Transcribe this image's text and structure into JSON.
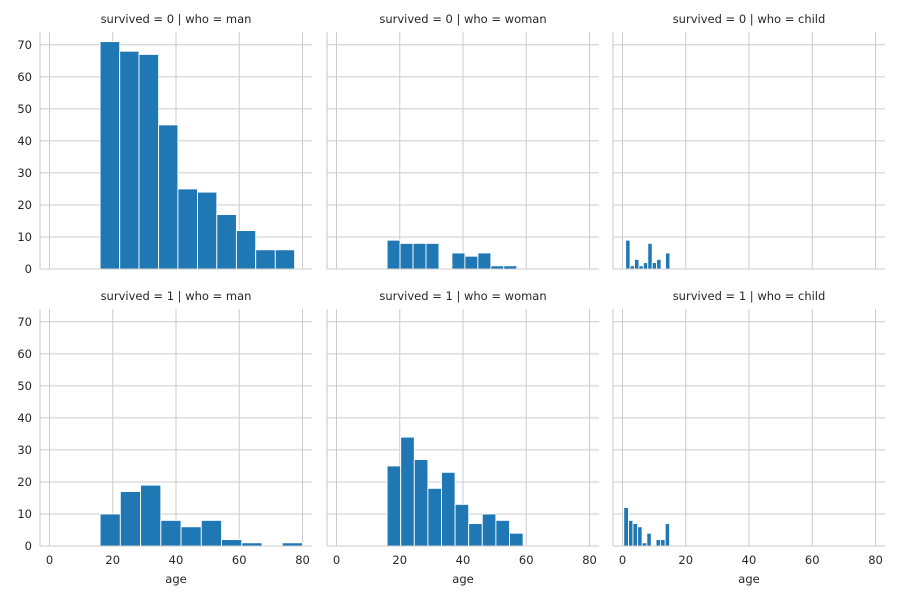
{
  "colors": {
    "bar": "#1f77b4",
    "grid": "#cccccc",
    "text": "#262626",
    "background": "#ffffff"
  },
  "chart_data": {
    "type": "bar",
    "layout": "facet-grid",
    "rows": 2,
    "cols": 3,
    "xlabel": "age",
    "xlim": [
      -3,
      83
    ],
    "xticks": [
      0,
      20,
      40,
      60,
      80
    ],
    "ylim": [
      0,
      74
    ],
    "yticks": [
      0,
      10,
      20,
      30,
      40,
      50,
      60,
      70
    ],
    "grid": true,
    "sharex": true,
    "sharey": true,
    "panels": [
      {
        "title": "survived = 0 | who = man",
        "bins": [
          {
            "x0": 16.0,
            "x1": 22.2,
            "value": 71
          },
          {
            "x0": 22.2,
            "x1": 28.3,
            "value": 68
          },
          {
            "x0": 28.3,
            "x1": 34.5,
            "value": 67
          },
          {
            "x0": 34.5,
            "x1": 40.6,
            "value": 45
          },
          {
            "x0": 40.6,
            "x1": 46.8,
            "value": 25
          },
          {
            "x0": 46.8,
            "x1": 52.9,
            "value": 24
          },
          {
            "x0": 52.9,
            "x1": 59.1,
            "value": 17
          },
          {
            "x0": 59.1,
            "x1": 65.2,
            "value": 12
          },
          {
            "x0": 65.2,
            "x1": 71.4,
            "value": 6
          },
          {
            "x0": 71.4,
            "x1": 77.5,
            "value": 6
          }
        ]
      },
      {
        "title": "survived = 0 | who = woman",
        "bins": [
          {
            "x0": 16.0,
            "x1": 20.1,
            "value": 9
          },
          {
            "x0": 20.1,
            "x1": 24.2,
            "value": 8
          },
          {
            "x0": 24.2,
            "x1": 28.3,
            "value": 8
          },
          {
            "x0": 28.3,
            "x1": 32.4,
            "value": 8
          },
          {
            "x0": 32.4,
            "x1": 36.5,
            "value": 0
          },
          {
            "x0": 36.5,
            "x1": 40.6,
            "value": 5
          },
          {
            "x0": 40.6,
            "x1": 44.7,
            "value": 4
          },
          {
            "x0": 44.7,
            "x1": 48.8,
            "value": 5
          },
          {
            "x0": 48.8,
            "x1": 52.9,
            "value": 1
          },
          {
            "x0": 52.9,
            "x1": 57.0,
            "value": 1
          }
        ]
      },
      {
        "title": "survived = 0 | who = child",
        "bins": [
          {
            "x0": 1.0,
            "x1": 2.4,
            "value": 9
          },
          {
            "x0": 2.4,
            "x1": 3.8,
            "value": 1
          },
          {
            "x0": 3.8,
            "x1": 5.2,
            "value": 3
          },
          {
            "x0": 5.2,
            "x1": 6.6,
            "value": 1
          },
          {
            "x0": 6.6,
            "x1": 8.0,
            "value": 2
          },
          {
            "x0": 8.0,
            "x1": 9.4,
            "value": 8
          },
          {
            "x0": 9.4,
            "x1": 10.8,
            "value": 2
          },
          {
            "x0": 10.8,
            "x1": 12.2,
            "value": 3
          },
          {
            "x0": 12.2,
            "x1": 13.6,
            "value": 0
          },
          {
            "x0": 13.6,
            "x1": 15.0,
            "value": 5
          }
        ]
      },
      {
        "title": "survived = 1 | who = man",
        "bins": [
          {
            "x0": 16.0,
            "x1": 22.4,
            "value": 10
          },
          {
            "x0": 22.4,
            "x1": 28.8,
            "value": 17
          },
          {
            "x0": 28.8,
            "x1": 35.2,
            "value": 19
          },
          {
            "x0": 35.2,
            "x1": 41.6,
            "value": 8
          },
          {
            "x0": 41.6,
            "x1": 48.0,
            "value": 6
          },
          {
            "x0": 48.0,
            "x1": 54.4,
            "value": 8
          },
          {
            "x0": 54.4,
            "x1": 60.8,
            "value": 2
          },
          {
            "x0": 60.8,
            "x1": 67.2,
            "value": 1
          },
          {
            "x0": 67.2,
            "x1": 73.6,
            "value": 0
          },
          {
            "x0": 73.6,
            "x1": 80.0,
            "value": 1
          }
        ]
      },
      {
        "title": "survived = 1 | who = woman",
        "bins": [
          {
            "x0": 16.0,
            "x1": 20.3,
            "value": 25
          },
          {
            "x0": 20.3,
            "x1": 24.6,
            "value": 34
          },
          {
            "x0": 24.6,
            "x1": 28.9,
            "value": 27
          },
          {
            "x0": 28.9,
            "x1": 33.2,
            "value": 18
          },
          {
            "x0": 33.2,
            "x1": 37.5,
            "value": 23
          },
          {
            "x0": 37.5,
            "x1": 41.8,
            "value": 13
          },
          {
            "x0": 41.8,
            "x1": 46.1,
            "value": 7
          },
          {
            "x0": 46.1,
            "x1": 50.4,
            "value": 10
          },
          {
            "x0": 50.4,
            "x1": 54.7,
            "value": 8
          },
          {
            "x0": 54.7,
            "x1": 59.0,
            "value": 4
          }
        ]
      },
      {
        "title": "survived = 1 | who = child",
        "bins": [
          {
            "x0": 0.4,
            "x1": 1.9,
            "value": 12
          },
          {
            "x0": 1.9,
            "x1": 3.3,
            "value": 8
          },
          {
            "x0": 3.3,
            "x1": 4.8,
            "value": 7
          },
          {
            "x0": 4.8,
            "x1": 6.2,
            "value": 6
          },
          {
            "x0": 6.2,
            "x1": 7.7,
            "value": 1
          },
          {
            "x0": 7.7,
            "x1": 9.1,
            "value": 4
          },
          {
            "x0": 9.1,
            "x1": 10.6,
            "value": 0
          },
          {
            "x0": 10.6,
            "x1": 12.0,
            "value": 2
          },
          {
            "x0": 12.0,
            "x1": 13.5,
            "value": 2
          },
          {
            "x0": 13.5,
            "x1": 14.9,
            "value": 7
          }
        ]
      }
    ]
  }
}
